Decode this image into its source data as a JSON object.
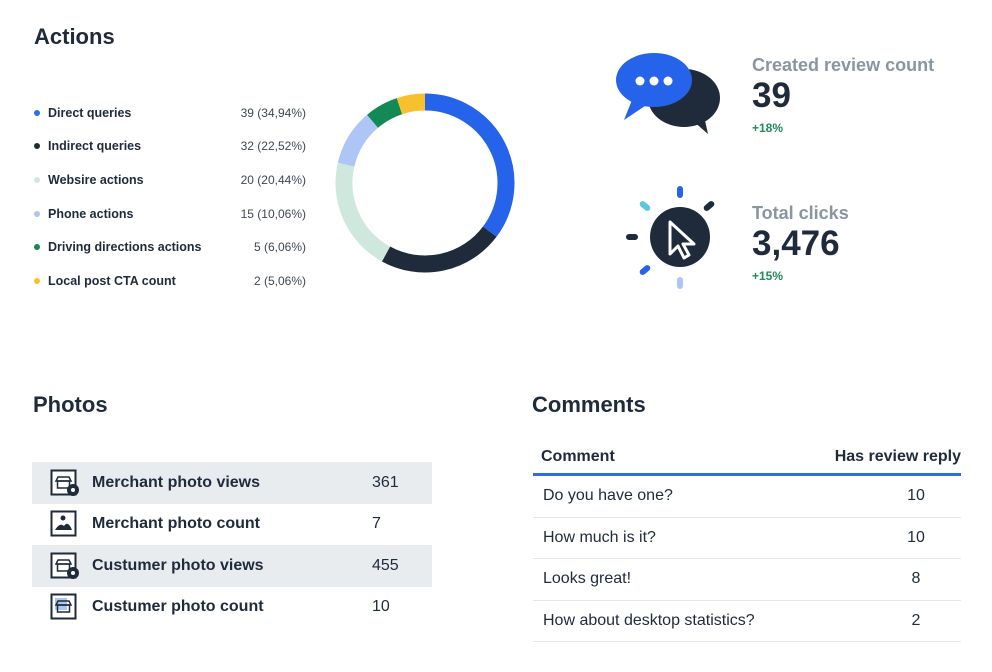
{
  "actions": {
    "title": "Actions",
    "items": [
      {
        "label": "Direct queries",
        "value": "39 (34,94%)",
        "color": "#2f6fe0"
      },
      {
        "label": "Indirect queries",
        "value": "32 (22,52%)",
        "color": "#1f2a3a"
      },
      {
        "label": "Websire actions",
        "value": "20 (20,44%)",
        "color": "#cfe8de"
      },
      {
        "label": "Phone actions",
        "value": "15 (10,06%)",
        "color": "#aec6f5"
      },
      {
        "label": "Driving directions actions",
        "value": "5 (6,06%)",
        "color": "#138a55"
      },
      {
        "label": "Local post CTA count",
        "value": "2 (5,06%)",
        "color": "#f7c12e"
      }
    ]
  },
  "chart_data": {
    "type": "pie",
    "categories": [
      "Direct queries",
      "Indirect queries",
      "Websire actions",
      "Phone actions",
      "Driving directions actions",
      "Local post CTA count"
    ],
    "values": [
      34.94,
      22.52,
      20.44,
      10.06,
      6.06,
      5.06
    ],
    "colors": [
      "#2563eb",
      "#1f2a3a",
      "#cfe8de",
      "#aec6f5",
      "#138a55",
      "#f7c12e"
    ]
  },
  "kpis": {
    "reviews": {
      "label": "Created review count",
      "value": "39",
      "change": "+18%"
    },
    "clicks": {
      "label": "Total clicks",
      "value": "3,476",
      "change": "+15%"
    }
  },
  "photos": {
    "title": "Photos",
    "items": [
      {
        "label": "Merchant photo views",
        "value": "361",
        "icon": "store-eye-icon"
      },
      {
        "label": "Merchant photo count",
        "value": "7",
        "icon": "landscape-photo-icon"
      },
      {
        "label": "Custumer photo views",
        "value": "455",
        "icon": "store-eye-icon"
      },
      {
        "label": "Custumer photo count",
        "value": "10",
        "icon": "store-photo-icon"
      }
    ]
  },
  "comments": {
    "title": "Comments",
    "columns": [
      "Comment",
      "Has review reply"
    ],
    "rows": [
      [
        "Do you have one?",
        "10"
      ],
      [
        "How much is it?",
        "10"
      ],
      [
        "Looks great!",
        "8"
      ],
      [
        "How about desktop statistics?",
        "2"
      ]
    ]
  }
}
